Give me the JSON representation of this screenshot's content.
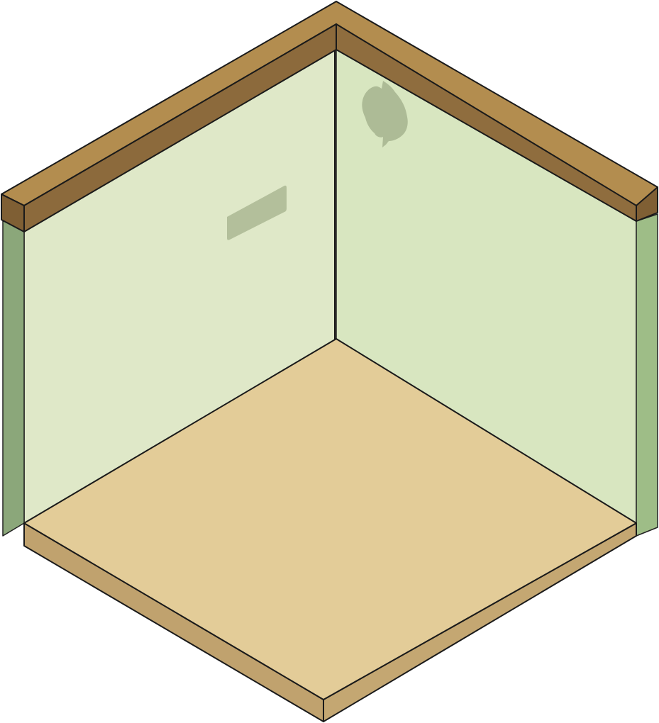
{
  "scene": {
    "type": "isometric-room",
    "style": "habbo-like empty room",
    "colors": {
      "background": "#ffffff",
      "wall_left": "#dfe8c8",
      "wall_right": "#d8e6c0",
      "wall_outline": "#1a1a1a",
      "wall_edge_left": "#8ba77a",
      "wall_edge_right": "#9ebd87",
      "wall_edge_dark": "#6f8a5e",
      "trim_top": "#b38d4f",
      "trim_front_left": "#8c6a3c",
      "trim_front_right": "#8f6d3e",
      "trim_end": "#7f5f34",
      "floor_top": "#e3cc98",
      "floor_edge_left": "#c0a26e",
      "floor_edge_right": "#c4a772",
      "floor_corner": "#a88857",
      "decal": "#a4b18c"
    },
    "objects": [
      {
        "name": "left-wall",
        "interactable": false
      },
      {
        "name": "right-wall",
        "interactable": false
      },
      {
        "name": "floor-tile",
        "interactable": true
      },
      {
        "name": "wall-vent-decal",
        "interactable": false
      },
      {
        "name": "wall-stain-decal",
        "interactable": false
      }
    ]
  }
}
